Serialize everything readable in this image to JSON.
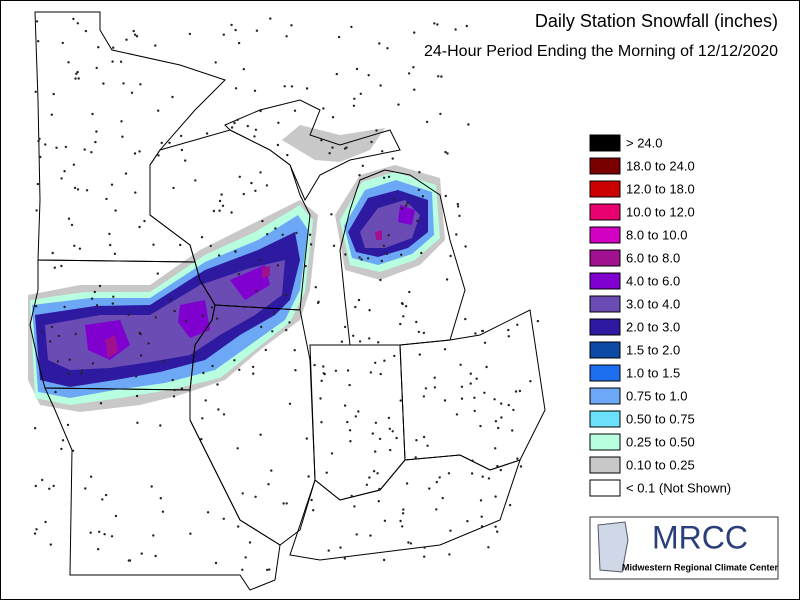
{
  "header": {
    "title": "Daily Station Snowfall (inches)",
    "subtitle": "24-Hour Period Ending the Morning of 12/12/2020"
  },
  "legend": {
    "items": [
      {
        "label": "> 24.0",
        "color": "#000000"
      },
      {
        "label": "18.0 to 24.0",
        "color": "#7a0000"
      },
      {
        "label": "12.0 to 18.0",
        "color": "#cc0000"
      },
      {
        "label": "10.0 to 12.0",
        "color": "#e8006e"
      },
      {
        "label": "8.0 to 10.0",
        "color": "#d400c4"
      },
      {
        "label": "6.0 to 8.0",
        "color": "#a0108f"
      },
      {
        "label": "4.0 to 6.0",
        "color": "#8000d0"
      },
      {
        "label": "3.0 to 4.0",
        "color": "#6a4cb4"
      },
      {
        "label": "2.0 to 3.0",
        "color": "#2e1aa0"
      },
      {
        "label": "1.5 to 2.0",
        "color": "#0c4aa6"
      },
      {
        "label": "1.0 to 1.5",
        "color": "#1e6ff0"
      },
      {
        "label": "0.75 to 1.0",
        "color": "#6ca8f6"
      },
      {
        "label": "0.50 to 0.75",
        "color": "#6ae0fa"
      },
      {
        "label": "0.25 to 0.50",
        "color": "#b8ffe0"
      },
      {
        "label": "0.10 to 0.25",
        "color": "#c8c8c8"
      },
      {
        "label": "< 0.1 (Not Shown)",
        "color": "#ffffff"
      }
    ]
  },
  "logo": {
    "acronym": "MRCC",
    "name": "Midwestern Regional Climate Center"
  }
}
